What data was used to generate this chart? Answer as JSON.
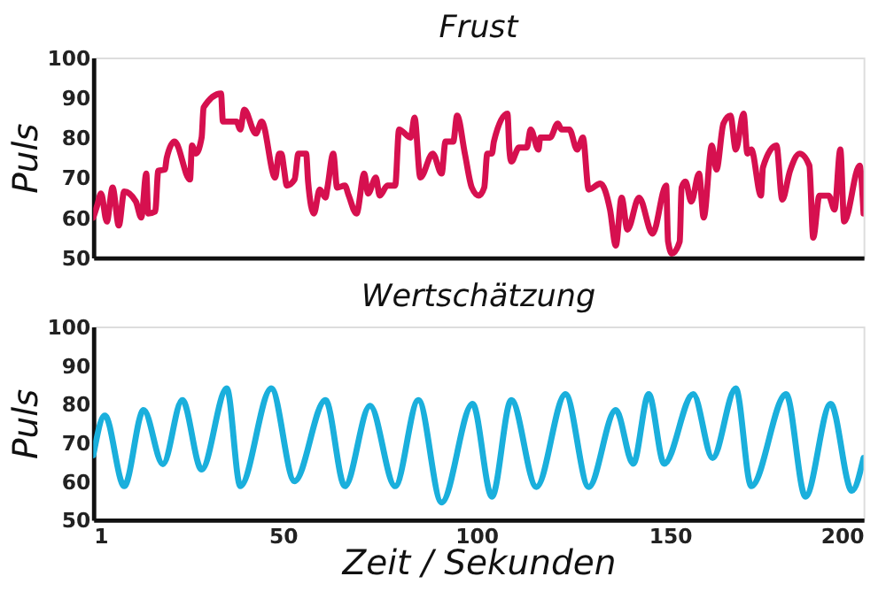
{
  "chart_data": [
    {
      "type": "line",
      "title": "Frust",
      "ylabel": "Puls",
      "xlim": [
        1,
        200
      ],
      "ylim": [
        50,
        100
      ],
      "yticks": [
        50,
        60,
        70,
        80,
        90,
        100
      ],
      "tick_labels": "y",
      "grid": false,
      "marker": "none",
      "line_style": "solid",
      "x": [
        1,
        2,
        3,
        4.5,
        6,
        7.6,
        9,
        12,
        13.4,
        14.7,
        15.2,
        17,
        17.8,
        19.5,
        20,
        22,
        26,
        26.5,
        27.5,
        29,
        29.5,
        34,
        34.5,
        38,
        39,
        40,
        43,
        44.5,
        48,
        49,
        49.6,
        50.3,
        51,
        53,
        54,
        56,
        56.5,
        58,
        59.5,
        61,
        61.5,
        63,
        64,
        66,
        67,
        69,
        71,
        72,
        74,
        75,
        77,
        79,
        80,
        83,
        84,
        85.5,
        88.7,
        91,
        92,
        94,
        95,
        97,
        98.8,
        100.6,
        102,
        102.8,
        104,
        104.5,
        108,
        108.5,
        109,
        111,
        113,
        114,
        116,
        116.5,
        119,
        121,
        122,
        124,
        126,
        127.5,
        129,
        132,
        134.5,
        136,
        137.5,
        139,
        142,
        145.5,
        149,
        149.5,
        150.5,
        152.5,
        153,
        154,
        155.5,
        157.5,
        158.7,
        160.8,
        162,
        163.8,
        165.6,
        167,
        169,
        170,
        171,
        173.5,
        174,
        177.5,
        179,
        181,
        183.5,
        186,
        187,
        188.6,
        191,
        192.5,
        194,
        195,
        199,
        200
      ],
      "series": [
        {
          "color": "#d6104f",
          "values": [
            60,
            63,
            66,
            59,
            67.5,
            58,
            66.5,
            64,
            60,
            71,
            61,
            61.5,
            71.7,
            72,
            75,
            79,
            69.5,
            78,
            76,
            80,
            87.5,
            91,
            84,
            84,
            82,
            87,
            81,
            84,
            70,
            76,
            76,
            72,
            68,
            69.5,
            76,
            76,
            69,
            61,
            67,
            65,
            67.5,
            76,
            67.5,
            68,
            65.5,
            61,
            71,
            66,
            70,
            65.5,
            68,
            68,
            82,
            80,
            85,
            70,
            76,
            71,
            79,
            79,
            85.5,
            76,
            67.5,
            65.5,
            67.5,
            76,
            76,
            79,
            86,
            77,
            74,
            77.5,
            77.5,
            82,
            77,
            80,
            80,
            83.5,
            82,
            82,
            77,
            80,
            67,
            68.5,
            62,
            53,
            65,
            57,
            65,
            56,
            68,
            54,
            51,
            54,
            67.5,
            69,
            64,
            71,
            60,
            78,
            72,
            83.5,
            85.5,
            77,
            86,
            76,
            77,
            65.5,
            72.5,
            78,
            64.5,
            71.7,
            76,
            73,
            55,
            65.5,
            65.5,
            62,
            77,
            59,
            73,
            61
          ]
        }
      ]
    },
    {
      "type": "line",
      "title": "Wertschätzung",
      "xlabel": "Zeit / Sekunden",
      "ylabel": "Puls",
      "xlim": [
        1,
        200
      ],
      "ylim": [
        50,
        100
      ],
      "xticks": [
        1,
        50,
        100,
        150,
        200
      ],
      "yticks": [
        50,
        60,
        70,
        80,
        90,
        100
      ],
      "grid": false,
      "marker": "none",
      "line_style": "solid",
      "x": [
        1,
        4,
        9,
        14,
        19,
        24,
        29,
        35.5,
        39,
        47,
        53,
        61,
        66,
        72.5,
        79,
        85,
        91,
        99,
        104,
        109,
        115.5,
        123,
        129,
        136,
        140.5,
        144.5,
        148.5,
        156,
        161,
        167,
        171,
        180,
        185,
        191.5,
        197,
        200
      ],
      "series": [
        {
          "color": "#1aafdc",
          "values": [
            66.7,
            77,
            58.7,
            78.4,
            64.4,
            81,
            63,
            84,
            58.7,
            84,
            60,
            81,
            58.7,
            79.5,
            58.7,
            81,
            54.5,
            80,
            56,
            81,
            58.5,
            82.5,
            58.5,
            78.4,
            64.5,
            82.5,
            64.5,
            82.5,
            66,
            84,
            58.7,
            82.5,
            56,
            80,
            57.5,
            66
          ]
        }
      ]
    }
  ]
}
